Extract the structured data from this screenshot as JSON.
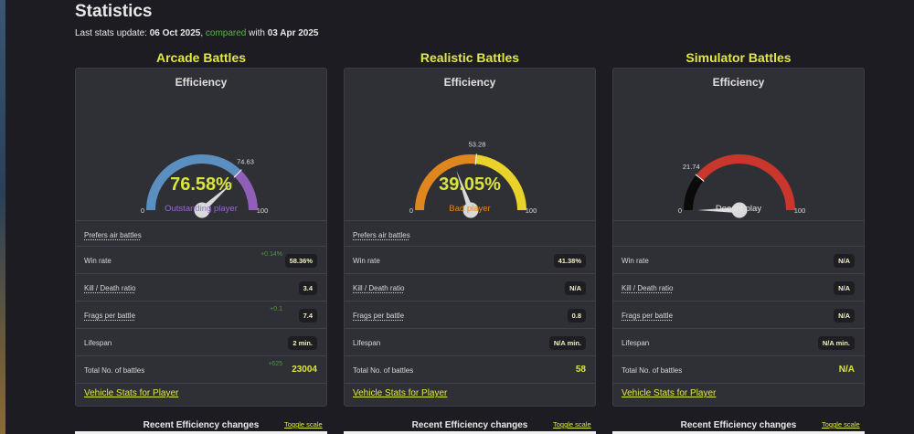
{
  "header": {
    "title": "Statistics",
    "update_prefix": "Last stats update: ",
    "update_date": "06 Oct 2025",
    "compared_text": "compared",
    "with_text": " with ",
    "compare_date": "03 Apr 2025"
  },
  "common": {
    "efficiency_label": "Efficiency",
    "gauge_min": "0",
    "gauge_max": "100",
    "vehicle_link": "Vehicle Stats for Player",
    "recent_title": "Recent Efficiency changes",
    "toggle_scale": "Toggle scale"
  },
  "columns": [
    {
      "title": "Arcade Battles",
      "efficiency_value": 76.58,
      "efficiency_text": "76.58%",
      "reference_value": 74.63,
      "reference_text": "74.63",
      "rating": "Outstanding player",
      "rating_color": "#9b6bc7",
      "prefers": "Prefers air battles",
      "win_rate_label": "Win rate",
      "win_rate": "58.36%",
      "win_rate_delta": "+0.14%",
      "kd_label": "Kill / Death ratio",
      "kd": "3.4",
      "frags_label": "Frags per battle",
      "frags": "7.4",
      "frags_delta": "+0.1",
      "lifespan_label": "Lifespan",
      "lifespan": "2 min.",
      "battles_label": "Total No. of battles",
      "battles": "23004",
      "battles_delta": "+625"
    },
    {
      "title": "Realistic Battles",
      "efficiency_value": 39.05,
      "efficiency_text": "39.05%",
      "reference_value": 53.28,
      "reference_text": "53.28",
      "rating": "Bad player",
      "rating_color": "#e0861e",
      "prefers": "Prefers air battles",
      "win_rate_label": "Win rate",
      "win_rate": "41.38%",
      "win_rate_delta": "",
      "kd_label": "Kill / Death ratio",
      "kd": "N/A",
      "frags_label": "Frags per battle",
      "frags": "0.8",
      "frags_delta": "",
      "lifespan_label": "Lifespan",
      "lifespan": "N/A min.",
      "battles_label": "Total No. of battles",
      "battles": "58",
      "battles_delta": ""
    },
    {
      "title": "Simulator Battles",
      "efficiency_value": 0,
      "efficiency_text": "",
      "reference_value": 21.74,
      "reference_text": "21.74",
      "rating": "Doesnt play",
      "rating_color": "#e8e8e8",
      "prefers": "",
      "win_rate_label": "Win rate",
      "win_rate": "N/A",
      "win_rate_delta": "",
      "kd_label": "Kill / Death ratio",
      "kd": "N/A",
      "frags_label": "Frags per battle",
      "frags": "N/A",
      "frags_delta": "",
      "lifespan_label": "Lifespan",
      "lifespan": "N/A min.",
      "battles_label": "Total No. of battles",
      "battles": "N/A",
      "battles_delta": ""
    }
  ],
  "colors": {
    "arcade_low": "#5a8fc0",
    "arcade_high": "#9060b8",
    "realistic_low": "#e0861e",
    "realistic_high": "#e9d22a",
    "sim_low": "#0a0a0a",
    "sim_high": "#c9372c",
    "accent": "#d9e53a"
  }
}
